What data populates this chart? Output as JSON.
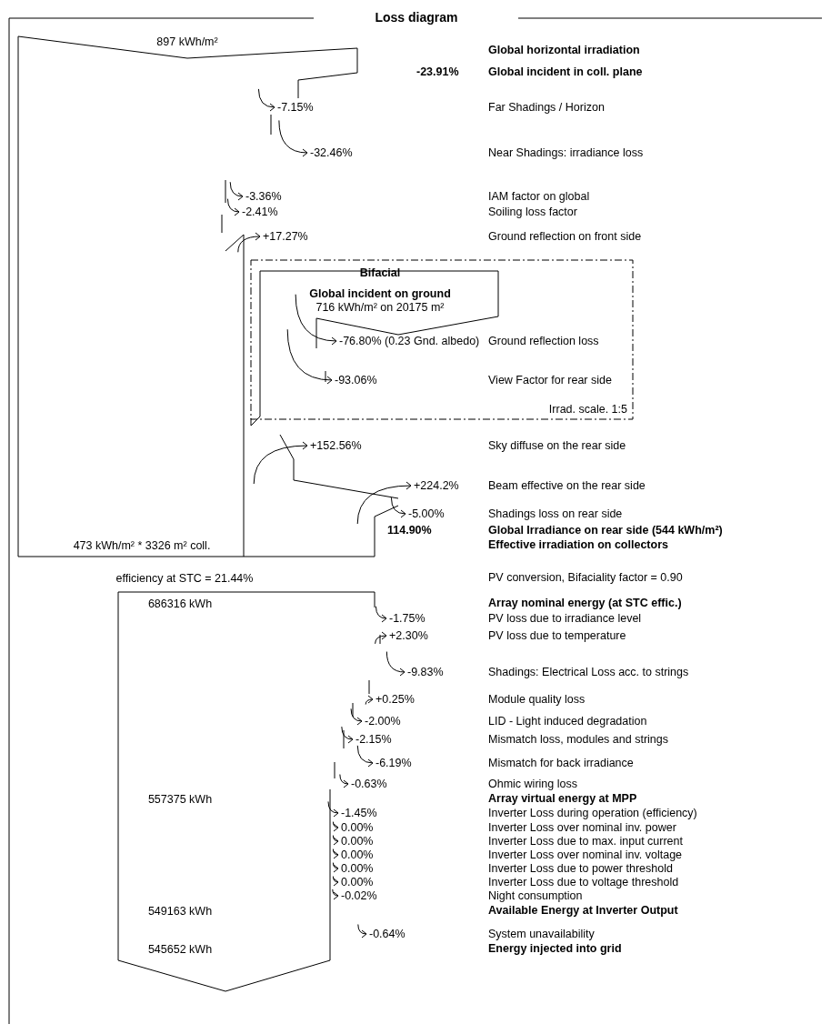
{
  "chart_data": {
    "type": "other",
    "title": "Loss diagram",
    "categories": [
      "Global horizontal irradiation",
      "Global incident in coll. plane",
      "Far Shadings / Horizon",
      "Near Shadings: irradiance loss",
      "IAM factor on global",
      "Soiling loss factor",
      "Ground reflection on front side",
      "Ground reflection loss",
      "View Factor for rear side",
      "Sky diffuse on the rear side",
      "Beam effective on the rear side",
      "Shadings loss on rear side",
      "Global Irradiance on rear side (544 kWh/m²)",
      "Effective irradiation on collectors",
      "PV conversion, Bifaciality factor = 0.90",
      "Array nominal energy (at STC effic.)",
      "PV loss due to irradiance level",
      "PV loss due to temperature",
      "Shadings: Electrical Loss acc. to strings",
      "Module quality loss",
      "LID - Light induced degradation",
      "Mismatch loss, modules and strings",
      "Mismatch for back irradiance",
      "Ohmic wiring loss",
      "Array virtual energy at MPP",
      "Inverter Loss during operation (efficiency)",
      "Inverter Loss over nominal inv. power",
      "Inverter Loss due to max. input current",
      "Inverter Loss over nominal inv. voltage",
      "Inverter Loss due to power threshold",
      "Inverter Loss due to voltage threshold",
      "Night consumption",
      "Available Energy at Inverter Output",
      "System unavailability",
      "Energy injected into grid"
    ],
    "values": [
      null,
      -23.91,
      -7.15,
      -32.46,
      -3.36,
      -2.41,
      17.27,
      -76.8,
      -93.06,
      152.56,
      224.2,
      -5.0,
      114.9,
      null,
      null,
      null,
      -1.75,
      2.3,
      -9.83,
      0.25,
      -2.0,
      -2.15,
      -6.19,
      -0.63,
      null,
      -1.45,
      0.0,
      0.0,
      0.0,
      0.0,
      0.0,
      -0.02,
      null,
      -0.64,
      null
    ],
    "value_labels": [
      null,
      "-23.91%",
      "-7.15%",
      "-32.46%",
      "-3.36%",
      "-2.41%",
      "+17.27%",
      "-76.80% (0.23 Gnd. albedo)",
      "-93.06%",
      "+152.56%",
      "+224.2%",
      "-5.00%",
      "114.90%",
      null,
      null,
      null,
      "-1.75%",
      "+2.30%",
      "-9.83%",
      "+0.25%",
      "-2.00%",
      "-2.15%",
      "-6.19%",
      "-0.63%",
      null,
      "-1.45%",
      "0.00%",
      "0.00%",
      "0.00%",
      "0.00%",
      "0.00%",
      "-0.02%",
      null,
      "-0.64%",
      null
    ],
    "annotations": [
      "897 kWh/m²",
      "Bifacial",
      "Global incident on ground",
      "716 kWh/m² on 20175 m²",
      "Irrad. scale. 1:5",
      "473 kWh/m² * 3326 m² coll.",
      "efficiency at STC = 21.44%",
      "686316 kWh",
      "557375 kWh",
      "549163 kWh",
      "545652 kWh"
    ]
  }
}
